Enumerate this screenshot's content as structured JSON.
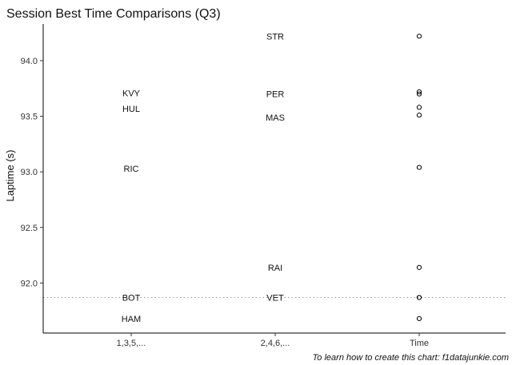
{
  "chart_data": {
    "type": "scatter",
    "title": "Session Best Time Comparisons (Q3)",
    "xlabel": "",
    "ylabel": "Laptime (s)",
    "caption": "To learn how to create this chart: f1datajunkie.com",
    "categories": [
      "1,3,5,...",
      "2,4,6,...",
      "Time"
    ],
    "yticks": [
      "92.0",
      "92.5",
      "93.0",
      "93.5",
      "94.0"
    ],
    "ylim": [
      91.55,
      94.33
    ],
    "grid": false,
    "reference_line": {
      "y": 91.87,
      "style": "dotted"
    },
    "labels": [
      {
        "category": "1,3,5,...",
        "text": "KVY",
        "y": 93.71
      },
      {
        "category": "1,3,5,...",
        "text": "HUL",
        "y": 93.57
      },
      {
        "category": "1,3,5,...",
        "text": "RIC",
        "y": 93.03
      },
      {
        "category": "1,3,5,...",
        "text": "BOT",
        "y": 91.87
      },
      {
        "category": "1,3,5,...",
        "text": "HAM",
        "y": 91.68
      },
      {
        "category": "2,4,6,...",
        "text": "STR",
        "y": 94.22
      },
      {
        "category": "2,4,6,...",
        "text": "PER",
        "y": 93.7
      },
      {
        "category": "2,4,6,...",
        "text": "MAS",
        "y": 93.49
      },
      {
        "category": "2,4,6,...",
        "text": "RAI",
        "y": 92.14
      },
      {
        "category": "2,4,6,...",
        "text": "VET",
        "y": 91.87
      }
    ],
    "points": [
      {
        "category": "Time",
        "y": 94.22
      },
      {
        "category": "Time",
        "y": 93.72
      },
      {
        "category": "Time",
        "y": 93.7
      },
      {
        "category": "Time",
        "y": 93.58
      },
      {
        "category": "Time",
        "y": 93.51
      },
      {
        "category": "Time",
        "y": 93.04
      },
      {
        "category": "Time",
        "y": 92.14
      },
      {
        "category": "Time",
        "y": 91.87
      },
      {
        "category": "Time",
        "y": 91.87
      },
      {
        "category": "Time",
        "y": 91.68
      }
    ]
  }
}
